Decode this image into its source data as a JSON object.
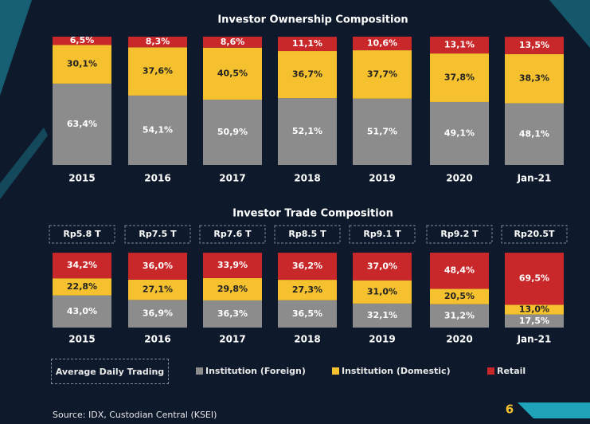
{
  "chart_data": [
    {
      "type": "bar",
      "stacked": true,
      "title": "Investor Ownership Composition",
      "categories": [
        "2015",
        "2016",
        "2017",
        "2018",
        "2019",
        "2020",
        "Jan-21"
      ],
      "series": [
        {
          "color": "#8c8c8c",
          "values": [
            63.4,
            54.1,
            50.9,
            52.1,
            51.7,
            49.1,
            48.1
          ],
          "value_labels": [
            "63,4%",
            "54,1%",
            "50,9%",
            "52,1%",
            "51,7%",
            "49,1%",
            "48,1%"
          ]
        },
        {
          "color": "#f5c12e",
          "values": [
            30.1,
            37.6,
            40.5,
            36.7,
            37.7,
            37.8,
            38.3
          ],
          "value_labels": [
            "30,1%",
            "37,6%",
            "40,5%",
            "36,7%",
            "37,7%",
            "37,8%",
            "38,3%"
          ]
        },
        {
          "color": "#c8282a",
          "values": [
            6.5,
            8.3,
            8.6,
            11.1,
            10.6,
            13.1,
            13.5
          ],
          "value_labels": [
            "6,5%",
            "8,3%",
            "8,6%",
            "11,1%",
            "10,6%",
            "13,1%",
            "13,5%"
          ]
        }
      ]
    },
    {
      "type": "bar",
      "stacked": true,
      "title": "Investor Trade Composition",
      "categories": [
        "2015",
        "2016",
        "2017",
        "2018",
        "2019",
        "2020",
        "Jan-21"
      ],
      "annotations": [
        "Rp5.8 T",
        "Rp7.5 T",
        "Rp7.6 T",
        "Rp8.5 T",
        "Rp9.1 T",
        "Rp9.2 T",
        "Rp20.5T"
      ],
      "annotation_label": "Average Daily Trading",
      "series": [
        {
          "name": "Institution (Foreign)",
          "color": "#8c8c8c",
          "values": [
            43.0,
            36.9,
            36.3,
            36.5,
            32.1,
            31.2,
            17.5
          ],
          "value_labels": [
            "43,0%",
            "36,9%",
            "36,3%",
            "36,5%",
            "32,1%",
            "31,2%",
            "17,5%"
          ]
        },
        {
          "name": "Institution (Domestic)",
          "color": "#f5c12e",
          "values": [
            22.8,
            27.1,
            29.8,
            27.3,
            31.0,
            20.5,
            13.0
          ],
          "value_labels": [
            "22,8%",
            "27,1%",
            "29,8%",
            "27,3%",
            "31,0%",
            "20,5%",
            "13,0%"
          ]
        },
        {
          "name": "Retail",
          "color": "#c8282a",
          "values": [
            34.2,
            36.0,
            33.9,
            36.2,
            37.0,
            48.4,
            69.5
          ],
          "value_labels": [
            "34,2%",
            "36,0%",
            "33,9%",
            "36,2%",
            "37,0%",
            "48,4%",
            "69,5%"
          ]
        }
      ]
    }
  ],
  "source": "Source: IDX, Custodian Central (KSEI)",
  "page_number": "6"
}
